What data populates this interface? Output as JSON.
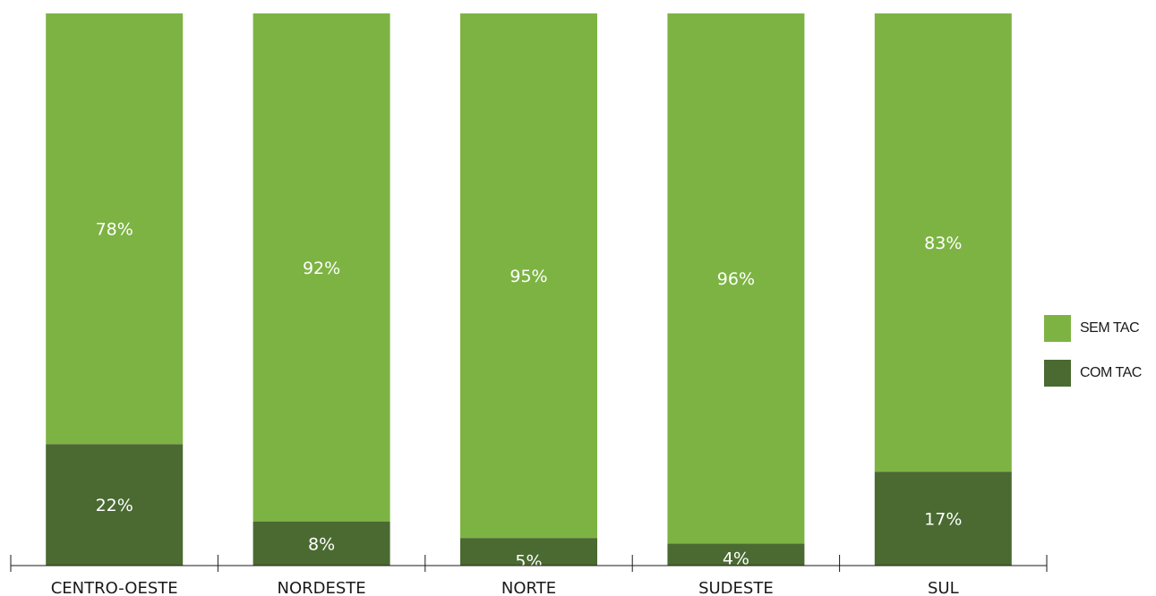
{
  "chart_data": {
    "type": "bar",
    "stacked": true,
    "categories": [
      "CENTRO-OESTE",
      "NORDESTE",
      "NORTE",
      "SUDESTE",
      "SUL"
    ],
    "series": [
      {
        "name": "COM TAC",
        "color": "#4a6a31",
        "values": [
          22,
          8,
          5,
          4,
          17
        ],
        "labels": [
          "22%",
          "8%",
          "5%",
          "4%",
          "17%"
        ]
      },
      {
        "name": "SEM TAC",
        "color": "#7db343",
        "values": [
          78,
          92,
          95,
          96,
          83
        ],
        "labels": [
          "78%",
          "92%",
          "95%",
          "96%",
          "83%"
        ]
      }
    ],
    "ylim": [
      0,
      100
    ],
    "grid": false,
    "legend_position": "right"
  },
  "legend": {
    "items": [
      {
        "label": "SEM TAC",
        "color": "#7db343"
      },
      {
        "label": "COM TAC",
        "color": "#4a6a31"
      }
    ]
  }
}
